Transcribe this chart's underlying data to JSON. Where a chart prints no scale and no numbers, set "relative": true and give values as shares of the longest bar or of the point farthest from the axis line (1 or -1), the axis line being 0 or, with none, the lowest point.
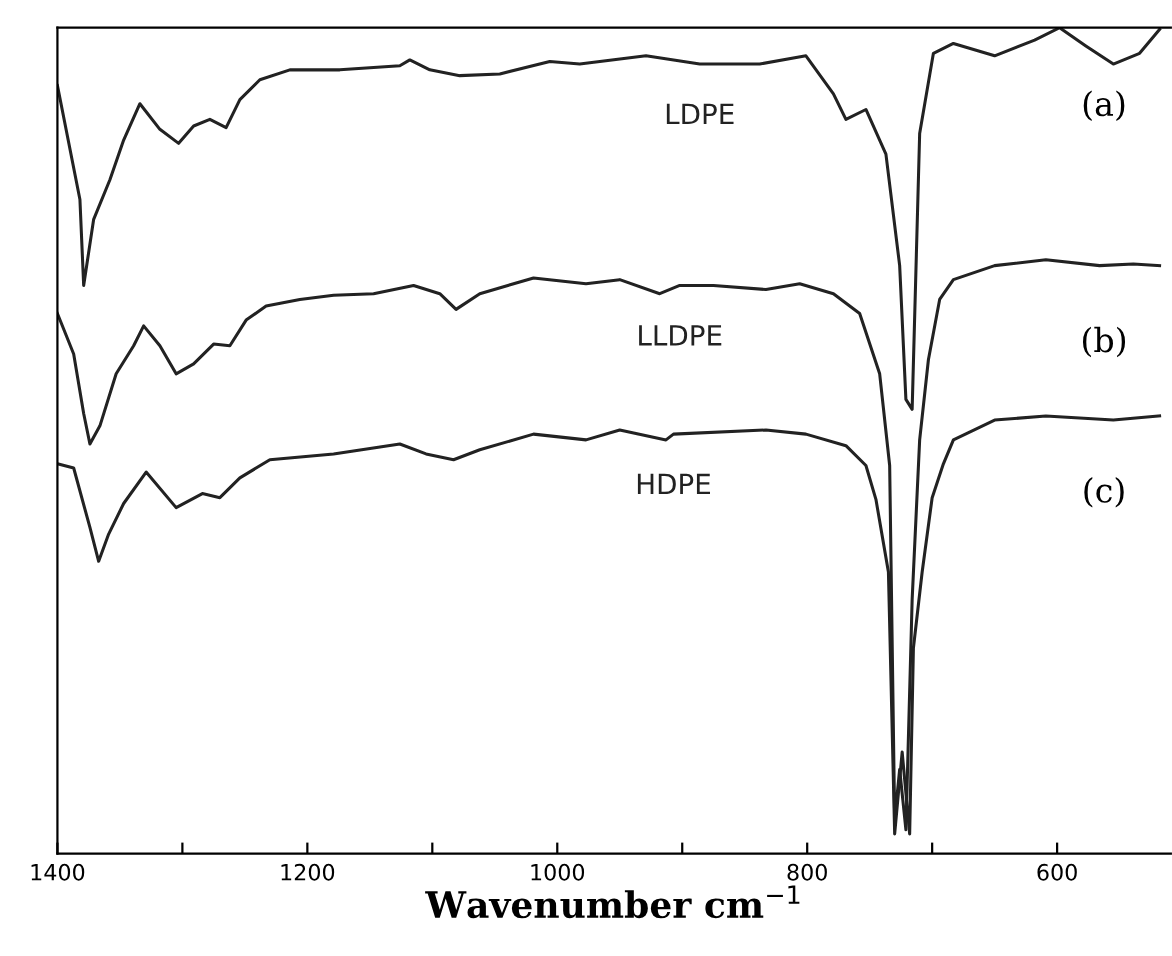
{
  "chart_data": {
    "type": "line",
    "relative": true,
    "xlabel": "Wavenumber cm$^{−1}$",
    "xlim": [
      1400,
      509
    ],
    "xticks": [
      1400,
      {
        "value": 1300,
        "label": null
      },
      1200,
      {
        "value": 1100,
        "label": null
      },
      1000,
      {
        "value": 900,
        "label": null
      },
      800,
      {
        "value": 700,
        "label": null
      },
      600
    ],
    "tick_labels": "x",
    "grid": false,
    "legend": false,
    "marker": "none",
    "line_style": "solid",
    "series": [
      {
        "name": "LDPE",
        "color": "#222222",
        "x": [
          1400,
          1382,
          1379,
          1371,
          1358,
          1347,
          1334,
          1318,
          1303,
          1291,
          1278,
          1265,
          1254,
          1238,
          1214,
          1174,
          1126,
          1118,
          1102,
          1078,
          1046,
          1006,
          982,
          929,
          886,
          838,
          801,
          779,
          769,
          753,
          737,
          726,
          721,
          716,
          710,
          699,
          683,
          650,
          618,
          598,
          577,
          555,
          534,
          518
        ],
        "values": [
          0.93,
          0.792,
          0.688,
          0.768,
          0.816,
          0.864,
          0.908,
          0.877,
          0.86,
          0.881,
          0.889,
          0.879,
          0.913,
          0.937,
          0.949,
          0.949,
          0.954,
          0.961,
          0.949,
          0.942,
          0.944,
          0.959,
          0.956,
          0.966,
          0.956,
          0.956,
          0.966,
          0.92,
          0.889,
          0.901,
          0.847,
          0.712,
          0.55,
          0.538,
          0.872,
          0.969,
          0.981,
          0.966,
          0.985,
          1.0,
          0.978,
          0.956,
          0.969,
          0.998
        ]
      },
      {
        "name": "LLDPE",
        "color": "#222222",
        "x": [
          1400,
          1387,
          1379,
          1374,
          1366,
          1353,
          1339,
          1331,
          1318,
          1305,
          1291,
          1275,
          1262,
          1249,
          1233,
          1206,
          1179,
          1147,
          1115,
          1094,
          1081,
          1062,
          1019,
          977,
          950,
          918,
          902,
          875,
          833,
          806,
          779,
          758,
          742,
          734,
          730,
          726,
          721,
          716,
          710,
          703,
          694,
          683,
          650,
          609,
          566,
          539,
          518
        ],
        "values": [
          0.654,
          0.605,
          0.533,
          0.496,
          0.518,
          0.581,
          0.615,
          0.639,
          0.615,
          0.581,
          0.593,
          0.617,
          0.615,
          0.646,
          0.663,
          0.671,
          0.676,
          0.678,
          0.688,
          0.678,
          0.659,
          0.678,
          0.697,
          0.69,
          0.695,
          0.678,
          0.688,
          0.688,
          0.683,
          0.69,
          0.678,
          0.654,
          0.581,
          0.47,
          0.041,
          0.102,
          0.029,
          0.308,
          0.501,
          0.598,
          0.671,
          0.695,
          0.712,
          0.719,
          0.712,
          0.714,
          0.712
        ]
      },
      {
        "name": "HDPE",
        "color": "#222222",
        "x": [
          1400,
          1387,
          1374,
          1367,
          1359,
          1347,
          1329,
          1305,
          1284,
          1270,
          1254,
          1230,
          1179,
          1126,
          1105,
          1083,
          1062,
          1019,
          977,
          950,
          913,
          907,
          833,
          801,
          769,
          753,
          745,
          735,
          730,
          724,
          718,
          715,
          708,
          700,
          691,
          683,
          650,
          609,
          555,
          518
        ],
        "values": [
          0.472,
          0.467,
          0.395,
          0.354,
          0.387,
          0.424,
          0.462,
          0.419,
          0.436,
          0.431,
          0.455,
          0.477,
          0.484,
          0.496,
          0.484,
          0.477,
          0.489,
          0.508,
          0.501,
          0.513,
          0.501,
          0.508,
          0.513,
          0.508,
          0.494,
          0.47,
          0.429,
          0.341,
          0.024,
          0.123,
          0.024,
          0.249,
          0.341,
          0.431,
          0.472,
          0.501,
          0.525,
          0.53,
          0.525,
          0.53
        ]
      }
    ],
    "annotations": [
      "(a)",
      "(b)",
      "(c)"
    ]
  }
}
